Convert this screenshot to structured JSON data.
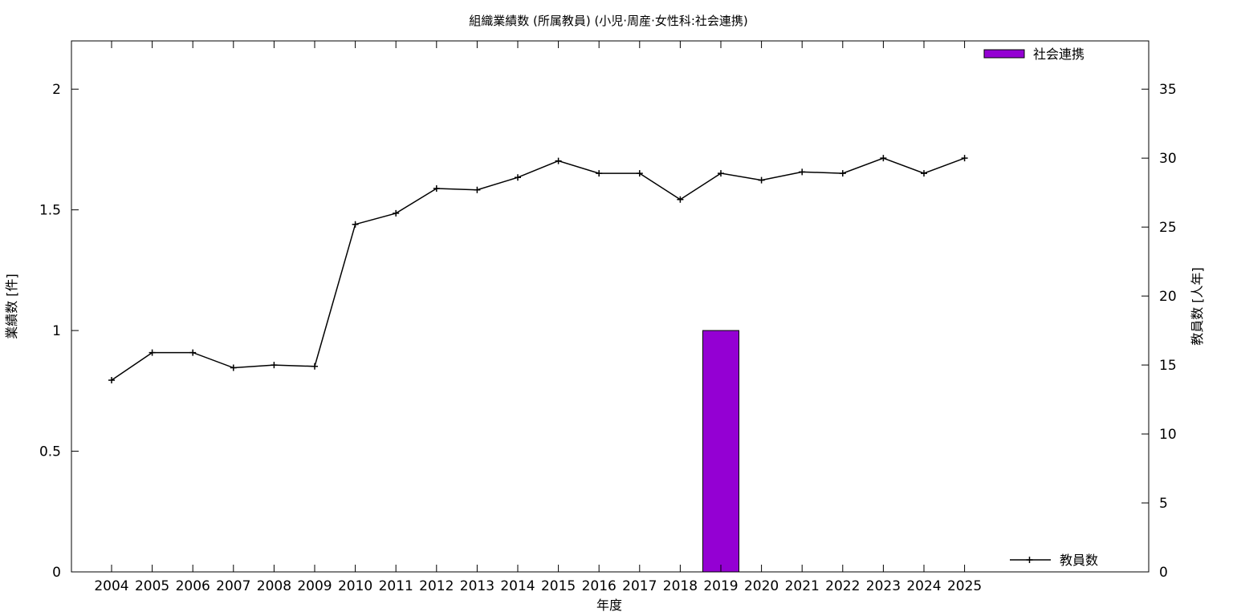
{
  "chart_data": {
    "type": "bar",
    "title": "組織業績数 (所属教員) (小児·周産·女性科:社会連携)",
    "xlabel": "年度",
    "ylabel": "業績数 [件]",
    "y2label": "教員数 [人年]",
    "categories": [
      "2004",
      "2005",
      "2006",
      "2007",
      "2008",
      "2009",
      "2010",
      "2011",
      "2012",
      "2013",
      "2014",
      "2015",
      "2016",
      "2017",
      "2018",
      "2019",
      "2020",
      "2021",
      "2022",
      "2023",
      "2024",
      "2025"
    ],
    "ylim": [
      0,
      2.2
    ],
    "yticks": [
      "0",
      "0.5",
      "1",
      "1.5",
      "2"
    ],
    "y2lim": [
      0,
      38.5
    ],
    "y2ticks": [
      "0",
      "5",
      "10",
      "15",
      "20",
      "25",
      "30",
      "35"
    ],
    "grid": false,
    "series": [
      {
        "name": "社会連携",
        "type": "bar",
        "axis": "left",
        "color": "#9400d3",
        "values": [
          0,
          0,
          0,
          0,
          0,
          0,
          0,
          0,
          0,
          0,
          0,
          0,
          0,
          0,
          0,
          1,
          0,
          0,
          0,
          0,
          0,
          0
        ],
        "legend_position": "top-right"
      },
      {
        "name": "教員数",
        "type": "line",
        "axis": "right",
        "color": "#000000",
        "values": [
          13.9,
          15.9,
          15.9,
          14.8,
          15.0,
          14.9,
          25.2,
          26.0,
          27.8,
          27.7,
          28.6,
          29.8,
          28.9,
          28.9,
          27.0,
          28.9,
          28.4,
          29.0,
          28.9,
          30.0,
          28.9,
          30.0
        ],
        "legend_position": "bottom-right"
      }
    ]
  }
}
